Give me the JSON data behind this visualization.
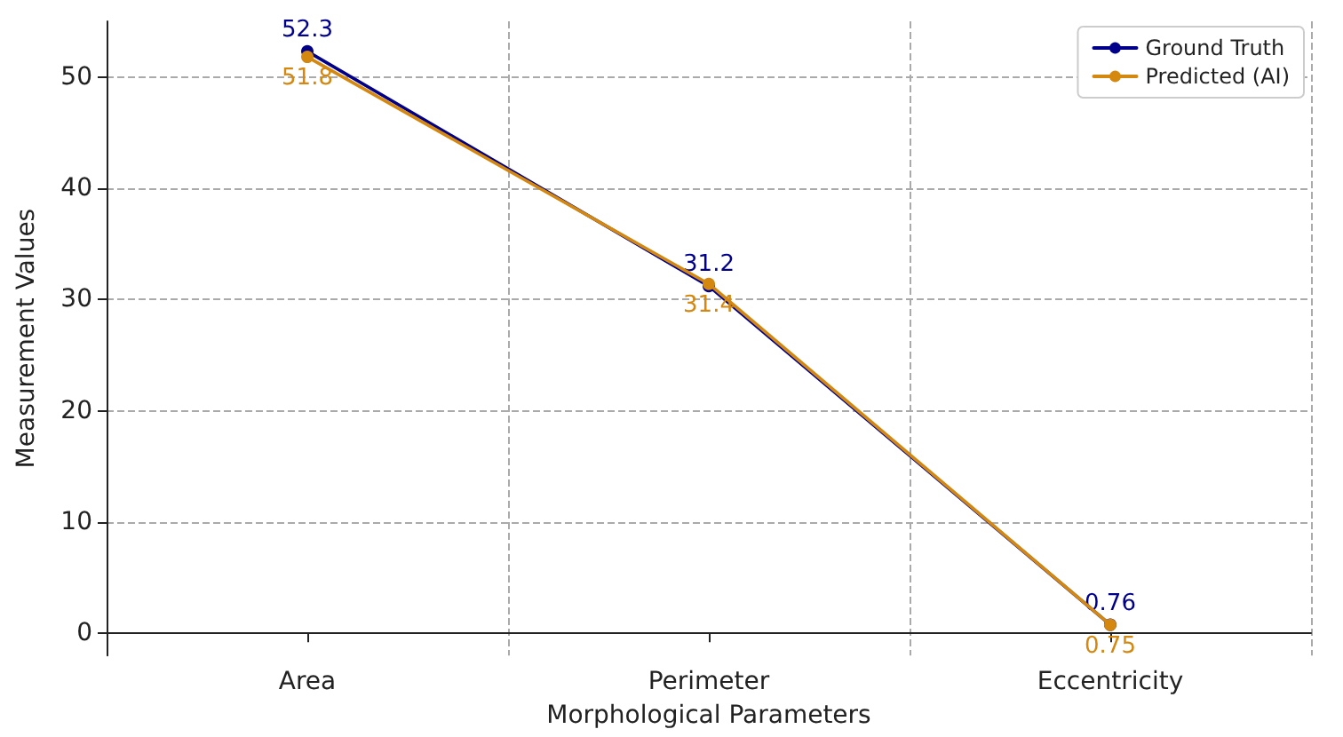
{
  "chart_data": {
    "type": "line",
    "xlabel": "Morphological Parameters",
    "ylabel": "Measurement Values",
    "categories": [
      "Area",
      "Perimeter",
      "Eccentricity"
    ],
    "series": [
      {
        "name": "Ground Truth",
        "color": "#00008b",
        "values": [
          52.3,
          31.2,
          0.76
        ]
      },
      {
        "name": "Predicted (AI)",
        "color": "#d4880f",
        "values": [
          51.8,
          31.4,
          0.75
        ]
      }
    ],
    "ylim": [
      -2,
      55
    ],
    "yticks": [
      0,
      10,
      20,
      30,
      40,
      50
    ],
    "grid": true,
    "legend": "top right",
    "marker": "circle",
    "line_style": "solid",
    "data_labels": true
  }
}
